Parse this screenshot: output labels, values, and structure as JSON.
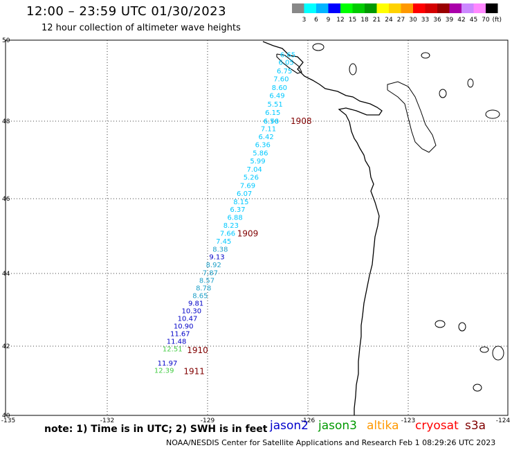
{
  "header": {
    "title": "12:00 – 23:59 UTC 01/30/2023",
    "subtitle": "12 hour collection of altimeter wave heights"
  },
  "legend": {
    "unit": "(ft)",
    "bins": [
      {
        "label": "3",
        "color": "#888888"
      },
      {
        "label": "6",
        "color": "#00ffff"
      },
      {
        "label": "9",
        "color": "#00b4ff"
      },
      {
        "label": "12",
        "color": "#0000ff"
      },
      {
        "label": "15",
        "color": "#00ff00"
      },
      {
        "label": "18",
        "color": "#00cc00"
      },
      {
        "label": "21",
        "color": "#009900"
      },
      {
        "label": "24",
        "color": "#ffff00"
      },
      {
        "label": "27",
        "color": "#ffd200"
      },
      {
        "label": "30",
        "color": "#ff9900"
      },
      {
        "label": "33",
        "color": "#ff0000"
      },
      {
        "label": "36",
        "color": "#d40000"
      },
      {
        "label": "39",
        "color": "#990000"
      },
      {
        "label": "42",
        "color": "#aa00aa"
      },
      {
        "label": "45",
        "color": "#cc88ff"
      },
      {
        "label": "70",
        "color": "#ff88ff"
      },
      {
        "label": "",
        "color": "#000000"
      }
    ]
  },
  "map": {
    "lon_range": [
      -135,
      -124
    ],
    "lat_range": [
      40,
      50
    ],
    "lon_ticks": [
      -135,
      -132,
      -129,
      -126,
      -123,
      -124
    ],
    "lon_tick_labels": [
      "-135",
      "-132",
      "-129",
      "-126",
      "-123",
      "-124"
    ],
    "lat_ticks": [
      50,
      48,
      46,
      44,
      42,
      40
    ],
    "lat_tick_labels": [
      "50",
      "48",
      "46",
      "44",
      "42",
      "40"
    ],
    "colors": {
      "cyan": "#00c8ff",
      "dark_cyan": "#1ea0c8",
      "blue": "#0000c8",
      "green": "#44cc44",
      "time": "#800000"
    },
    "wave_heights": [
      {
        "value": "6.65",
        "lon": -126.6,
        "lat": 49.65,
        "color": "cyan"
      },
      {
        "value": "6.05",
        "lon": -126.65,
        "lat": 49.46,
        "color": "cyan"
      },
      {
        "value": "6.75",
        "lon": -126.7,
        "lat": 49.25,
        "color": "cyan"
      },
      {
        "value": "7.60",
        "lon": -126.8,
        "lat": 49.05,
        "color": "cyan"
      },
      {
        "value": "8.60",
        "lon": -126.85,
        "lat": 48.84,
        "color": "cyan"
      },
      {
        "value": "6.49",
        "lon": -126.92,
        "lat": 48.64,
        "color": "cyan"
      },
      {
        "value": "5.51",
        "lon": -126.98,
        "lat": 48.43,
        "color": "cyan"
      },
      {
        "value": "6.15",
        "lon": -127.05,
        "lat": 48.22,
        "color": "cyan"
      },
      {
        "value": "6.76",
        "lon": -127.1,
        "lat": 48.01,
        "color": "cyan"
      },
      {
        "value": "6.50",
        "lon": -127.1,
        "lat": 48.01,
        "color": "cyan"
      },
      {
        "value": "7.11",
        "lon": -127.18,
        "lat": 47.81,
        "color": "cyan"
      },
      {
        "value": "6.42",
        "lon": -127.25,
        "lat": 47.61,
        "color": "cyan"
      },
      {
        "value": "6.36",
        "lon": -127.35,
        "lat": 47.4,
        "color": "cyan"
      },
      {
        "value": "5.86",
        "lon": -127.42,
        "lat": 47.19,
        "color": "cyan"
      },
      {
        "value": "5.99",
        "lon": -127.5,
        "lat": 46.98,
        "color": "cyan"
      },
      {
        "value": "7.04",
        "lon": -127.6,
        "lat": 46.77,
        "color": "cyan"
      },
      {
        "value": "5.26",
        "lon": -127.7,
        "lat": 46.56,
        "color": "cyan"
      },
      {
        "value": "7.69",
        "lon": -127.8,
        "lat": 46.35,
        "color": "cyan"
      },
      {
        "value": "6.07",
        "lon": -127.9,
        "lat": 46.14,
        "color": "cyan"
      },
      {
        "value": "8.15",
        "lon": -128.0,
        "lat": 45.93,
        "color": "cyan"
      },
      {
        "value": "6.37",
        "lon": -128.1,
        "lat": 45.72,
        "color": "cyan"
      },
      {
        "value": "6.88",
        "lon": -128.18,
        "lat": 45.51,
        "color": "cyan"
      },
      {
        "value": "8.23",
        "lon": -128.3,
        "lat": 45.3,
        "color": "cyan"
      },
      {
        "value": "7.66",
        "lon": -128.4,
        "lat": 45.08,
        "color": "cyan"
      },
      {
        "value": "7.45",
        "lon": -128.52,
        "lat": 44.87,
        "color": "cyan"
      },
      {
        "value": "8.38",
        "lon": -128.62,
        "lat": 44.66,
        "color": "dark_cyan"
      },
      {
        "value": "9.13",
        "lon": -128.72,
        "lat": 44.45,
        "color": "blue"
      },
      {
        "value": "8.92",
        "lon": -128.82,
        "lat": 44.24,
        "color": "dark_cyan"
      },
      {
        "value": "7.87",
        "lon": -128.92,
        "lat": 44.03,
        "color": "dark_cyan"
      },
      {
        "value": "8.57",
        "lon": -129.02,
        "lat": 43.82,
        "color": "dark_cyan"
      },
      {
        "value": "8.78",
        "lon": -129.12,
        "lat": 43.61,
        "color": "dark_cyan"
      },
      {
        "value": "8.65",
        "lon": -129.22,
        "lat": 43.4,
        "color": "dark_cyan"
      },
      {
        "value": "9.81",
        "lon": -129.35,
        "lat": 43.19,
        "color": "blue"
      },
      {
        "value": "10.30",
        "lon": -129.48,
        "lat": 42.98,
        "color": "blue"
      },
      {
        "value": "10.47",
        "lon": -129.6,
        "lat": 42.77,
        "color": "blue"
      },
      {
        "value": "10.90",
        "lon": -129.72,
        "lat": 42.56,
        "color": "blue"
      },
      {
        "value": "11.67",
        "lon": -129.82,
        "lat": 42.35,
        "color": "blue"
      },
      {
        "value": "11.48",
        "lon": -129.93,
        "lat": 42.14,
        "color": "blue"
      },
      {
        "value": "12.51",
        "lon": -130.05,
        "lat": 41.93,
        "color": "green"
      },
      {
        "value": "11.97",
        "lon": -130.2,
        "lat": 41.52,
        "color": "blue"
      },
      {
        "value": "12.39",
        "lon": -130.3,
        "lat": 41.31,
        "color": "green"
      }
    ],
    "time_labels": [
      {
        "value": "1908",
        "lon": -126.2,
        "lat": 48.02
      },
      {
        "value": "1909",
        "lon": -127.8,
        "lat": 45.08
      },
      {
        "value": "1910",
        "lon": -129.3,
        "lat": 41.9
      },
      {
        "value": "1911",
        "lon": -129.4,
        "lat": 41.29
      }
    ]
  },
  "note": "note:  1) Time is in UTC;  2) SWH is in feet",
  "satellites": [
    {
      "name": "jason2",
      "color": "#0000cc"
    },
    {
      "name": "jason3",
      "color": "#009900"
    },
    {
      "name": "altika",
      "color": "#ff9900"
    },
    {
      "name": "cryosat",
      "color": "#ff0000"
    },
    {
      "name": "s3a",
      "color": "#800000"
    }
  ],
  "footer": "NOAA/NESDIS Center for Satellite Applications and Research    Feb  1 08:29:26 UTC 2023"
}
